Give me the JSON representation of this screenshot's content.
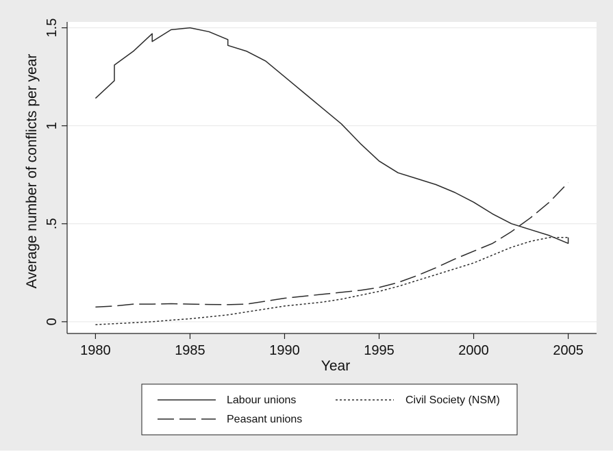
{
  "chart_data": {
    "type": "line",
    "xlabel": "Year",
    "ylabel": "Average number of conflicts per year",
    "xlim": [
      1978.5,
      2006.5
    ],
    "ylim": [
      -0.06,
      1.53
    ],
    "x_ticks": [
      1980,
      1985,
      1990,
      1995,
      2000,
      2005
    ],
    "y_ticks": [
      {
        "value": 0,
        "label": "0"
      },
      {
        "value": 0.5,
        "label": ".5"
      },
      {
        "value": 1,
        "label": "1"
      },
      {
        "value": 1.5,
        "label": "1.5"
      }
    ],
    "grid": true,
    "legend_placement": "bottom",
    "colors": {
      "outer_background": "#ebebeb",
      "plot_background": "#ffffff",
      "gridline": "#e6e6e6",
      "line": "#2a2a2a"
    },
    "series": [
      {
        "name": "Labour unions",
        "style": "solid",
        "points": [
          [
            1980,
            1.14
          ],
          [
            1981,
            1.23
          ],
          [
            1981,
            1.31
          ],
          [
            1982,
            1.38
          ],
          [
            1983,
            1.47
          ],
          [
            1983,
            1.43
          ],
          [
            1984,
            1.49
          ],
          [
            1985,
            1.5
          ],
          [
            1986,
            1.48
          ],
          [
            1987,
            1.44
          ],
          [
            1987,
            1.41
          ],
          [
            1988,
            1.38
          ],
          [
            1989,
            1.33
          ],
          [
            1990,
            1.25
          ],
          [
            1991,
            1.17
          ],
          [
            1992,
            1.09
          ],
          [
            1993,
            1.01
          ],
          [
            1994,
            0.91
          ],
          [
            1995,
            0.82
          ],
          [
            1996,
            0.76
          ],
          [
            1997,
            0.73
          ],
          [
            1998,
            0.7
          ],
          [
            1999,
            0.66
          ],
          [
            2000,
            0.61
          ],
          [
            2001,
            0.55
          ],
          [
            2002,
            0.5
          ],
          [
            2003,
            0.47
          ],
          [
            2004,
            0.44
          ],
          [
            2005,
            0.4
          ],
          [
            2005,
            0.43
          ]
        ]
      },
      {
        "name": "Civil Society (NSM)",
        "style": "dotted",
        "points": [
          [
            1980,
            -0.015
          ],
          [
            1981,
            -0.01
          ],
          [
            1982,
            -0.005
          ],
          [
            1983,
            0.0
          ],
          [
            1984,
            0.008
          ],
          [
            1985,
            0.015
          ],
          [
            1986,
            0.025
          ],
          [
            1987,
            0.035
          ],
          [
            1988,
            0.05
          ],
          [
            1989,
            0.065
          ],
          [
            1990,
            0.08
          ],
          [
            1991,
            0.09
          ],
          [
            1992,
            0.1
          ],
          [
            1993,
            0.115
          ],
          [
            1994,
            0.135
          ],
          [
            1995,
            0.155
          ],
          [
            1996,
            0.18
          ],
          [
            1997,
            0.21
          ],
          [
            1998,
            0.24
          ],
          [
            1999,
            0.27
          ],
          [
            2000,
            0.3
          ],
          [
            2001,
            0.34
          ],
          [
            2002,
            0.38
          ],
          [
            2003,
            0.41
          ],
          [
            2004,
            0.43
          ],
          [
            2005,
            0.43
          ]
        ]
      },
      {
        "name": "Peasant unions",
        "style": "dashed",
        "points": [
          [
            1980,
            0.075
          ],
          [
            1981,
            0.08
          ],
          [
            1982,
            0.09
          ],
          [
            1983,
            0.09
          ],
          [
            1984,
            0.092
          ],
          [
            1985,
            0.09
          ],
          [
            1986,
            0.088
          ],
          [
            1987,
            0.087
          ],
          [
            1988,
            0.09
          ],
          [
            1989,
            0.105
          ],
          [
            1990,
            0.12
          ],
          [
            1991,
            0.13
          ],
          [
            1992,
            0.14
          ],
          [
            1993,
            0.15
          ],
          [
            1994,
            0.16
          ],
          [
            1995,
            0.175
          ],
          [
            1996,
            0.2
          ],
          [
            1997,
            0.235
          ],
          [
            1998,
            0.275
          ],
          [
            1999,
            0.32
          ],
          [
            2000,
            0.36
          ],
          [
            2001,
            0.4
          ],
          [
            2002,
            0.46
          ],
          [
            2003,
            0.53
          ],
          [
            2004,
            0.61
          ],
          [
            2005,
            0.71
          ]
        ]
      }
    ]
  }
}
